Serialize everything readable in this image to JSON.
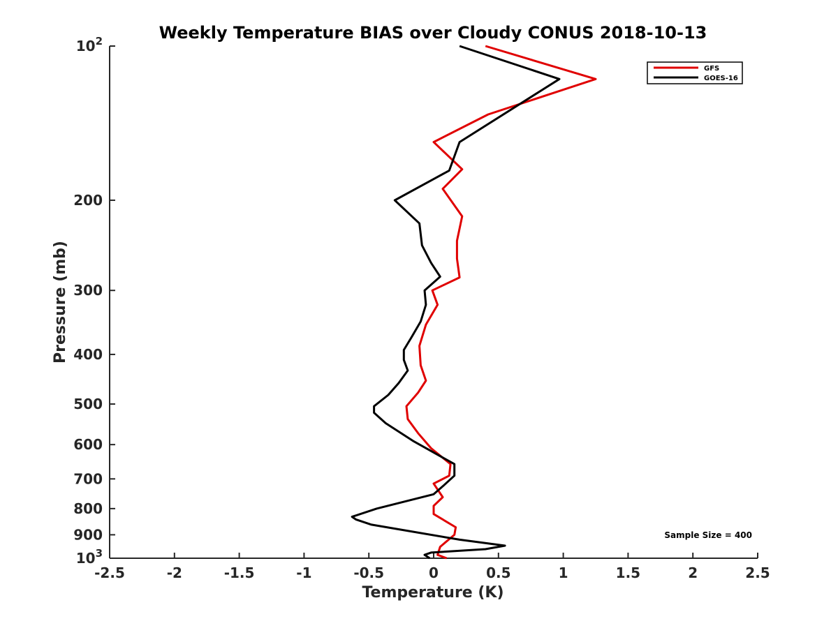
{
  "chart_data": {
    "type": "line",
    "title": "Weekly Temperature BIAS over Cloudy CONUS 2018-10-13",
    "xlabel": "Temperature (K)",
    "ylabel": "Pressure (mb)",
    "xlim": [
      -2.5,
      2.5
    ],
    "ylim": [
      100,
      1000
    ],
    "yscale": "log",
    "yreversed": true,
    "grid": false,
    "legend_position": "top-right",
    "x_ticks": [
      -2.5,
      -2,
      -1.5,
      -1,
      -0.5,
      0,
      0.5,
      1,
      1.5,
      2,
      2.5
    ],
    "x_tick_labels": [
      "-2.5",
      "-2",
      "-1.5",
      "-1",
      "-0.5",
      "0",
      "0.5",
      "1",
      "1.5",
      "2",
      "2.5"
    ],
    "y_ticks": [
      {
        "value": 100,
        "base": "10",
        "exp": "2"
      },
      {
        "value": 200,
        "label": "200"
      },
      {
        "value": 300,
        "label": "300"
      },
      {
        "value": 400,
        "label": "400"
      },
      {
        "value": 500,
        "label": "500"
      },
      {
        "value": 600,
        "label": "600"
      },
      {
        "value": 700,
        "label": "700"
      },
      {
        "value": 800,
        "label": "800"
      },
      {
        "value": 900,
        "label": "900"
      },
      {
        "value": 1000,
        "base": "10",
        "exp": "3"
      }
    ],
    "series": [
      {
        "name": "GFS",
        "color": "#e00000",
        "x": [
          0.4,
          1.25,
          0.42,
          0.0,
          0.22,
          0.07,
          0.22,
          0.18,
          0.18,
          0.2,
          -0.01,
          0.03,
          -0.06,
          -0.11,
          -0.1,
          -0.06,
          -0.12,
          -0.21,
          -0.2,
          -0.12,
          -0.02,
          0.13,
          0.12,
          0.0,
          0.07,
          0.0,
          0.0,
          0.17,
          0.16,
          0.05,
          0.03,
          0.1
        ],
        "y": [
          100,
          116,
          136,
          154,
          174,
          190,
          215,
          240,
          260,
          283,
          300,
          320,
          350,
          385,
          420,
          450,
          475,
          505,
          535,
          570,
          610,
          655,
          690,
          715,
          760,
          790,
          820,
          870,
          900,
          950,
          985,
          1000
        ]
      },
      {
        "name": "GOES-16",
        "color": "#000000",
        "x": [
          0.2,
          0.97,
          0.2,
          0.12,
          -0.3,
          -0.11,
          -0.09,
          -0.02,
          0.05,
          -0.07,
          -0.06,
          -0.1,
          -0.17,
          -0.23,
          -0.23,
          -0.2,
          -0.27,
          -0.35,
          -0.46,
          -0.46,
          -0.37,
          -0.16,
          0.16,
          0.16,
          0.08,
          0.0,
          -0.44,
          -0.63,
          -0.6,
          -0.48,
          0.2,
          0.55,
          0.4,
          -0.02,
          -0.07,
          -0.03
        ],
        "y": [
          100,
          116,
          154,
          175,
          200,
          222,
          245,
          265,
          282,
          300,
          320,
          345,
          370,
          392,
          410,
          430,
          455,
          480,
          505,
          520,
          545,
          590,
          655,
          690,
          720,
          750,
          800,
          830,
          840,
          860,
          920,
          945,
          960,
          975,
          985,
          1000
        ]
      }
    ],
    "annotation": "Sample Size = 400"
  }
}
